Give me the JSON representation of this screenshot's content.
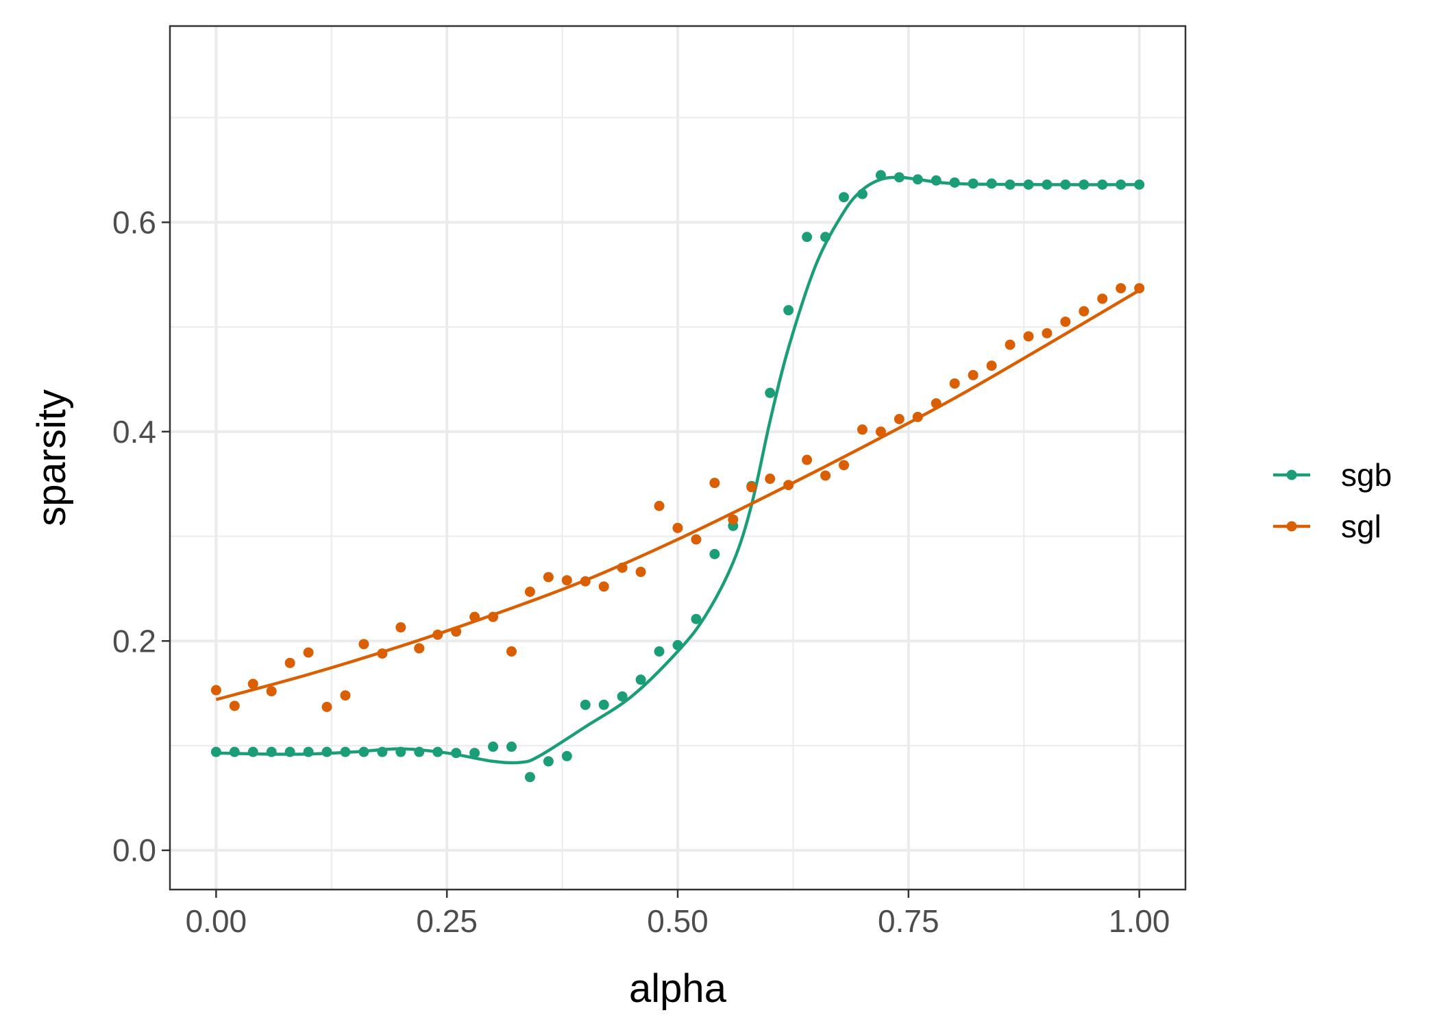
{
  "chart_data": {
    "type": "line",
    "title": "",
    "xlabel": "alpha",
    "ylabel": "sparsity",
    "xlim": [
      -0.0625,
      2.0
    ],
    "ylim": [
      -0.0375,
      0.7875
    ],
    "x_ticks": [
      0.0,
      0.25,
      0.5,
      0.75,
      1.0
    ],
    "x_tick_labels": [
      "0.00",
      "0.25",
      "0.50",
      "0.75",
      "1.00"
    ],
    "y_ticks": [
      0.0,
      0.2,
      0.4,
      0.6
    ],
    "y_tick_labels": [
      "0.0",
      "0.2",
      "0.4",
      "0.6"
    ],
    "grid": true,
    "legend_position": "right",
    "series": [
      {
        "name": "sgb",
        "color": "#1b9e77",
        "x": [
          0.0,
          0.02,
          0.04,
          0.06,
          0.08,
          0.1,
          0.12,
          0.14,
          0.16,
          0.18,
          0.2,
          0.22,
          0.24,
          0.26,
          0.28,
          0.3,
          0.32,
          0.34,
          0.36,
          0.38,
          0.4,
          0.42,
          0.44,
          0.46,
          0.48,
          0.5,
          0.52,
          0.54,
          0.56,
          0.58,
          0.6,
          0.62,
          0.64,
          0.66,
          0.68,
          0.7,
          0.72,
          0.74,
          0.76,
          0.78,
          0.8,
          0.82,
          0.84,
          0.86,
          0.88,
          0.9,
          0.92,
          0.94,
          0.96,
          0.98,
          1.0
        ],
        "y": [
          0.094,
          0.094,
          0.094,
          0.094,
          0.094,
          0.094,
          0.094,
          0.094,
          0.094,
          0.094,
          0.094,
          0.094,
          0.094,
          0.093,
          0.093,
          0.099,
          0.099,
          0.07,
          0.085,
          0.09,
          0.139,
          0.139,
          0.147,
          0.163,
          0.19,
          0.196,
          0.221,
          0.283,
          0.31,
          0.348,
          0.437,
          0.516,
          0.586,
          0.586,
          0.624,
          0.627,
          0.645,
          0.643,
          0.641,
          0.64,
          0.638,
          0.637,
          0.637,
          0.636,
          0.636,
          0.636,
          0.636,
          0.636,
          0.636,
          0.636,
          0.636
        ],
        "fit_x": [
          0.0,
          0.05,
          0.1,
          0.15,
          0.2,
          0.25,
          0.3,
          0.33,
          0.35,
          0.4,
          0.45,
          0.5,
          0.53,
          0.56,
          0.58,
          0.6,
          0.62,
          0.65,
          0.68,
          0.7,
          0.72,
          0.74,
          0.76,
          0.8,
          0.9,
          1.0
        ],
        "fit_y": [
          0.093,
          0.092,
          0.092,
          0.094,
          0.097,
          0.093,
          0.085,
          0.084,
          0.09,
          0.118,
          0.147,
          0.19,
          0.224,
          0.275,
          0.33,
          0.41,
          0.48,
          0.56,
          0.61,
          0.631,
          0.641,
          0.643,
          0.641,
          0.637,
          0.636,
          0.636
        ]
      },
      {
        "name": "sgl",
        "color": "#d95f02",
        "x": [
          0.0,
          0.02,
          0.04,
          0.06,
          0.08,
          0.1,
          0.12,
          0.14,
          0.16,
          0.18,
          0.2,
          0.22,
          0.24,
          0.26,
          0.28,
          0.3,
          0.32,
          0.34,
          0.36,
          0.38,
          0.4,
          0.42,
          0.44,
          0.46,
          0.48,
          0.5,
          0.52,
          0.54,
          0.56,
          0.58,
          0.6,
          0.62,
          0.64,
          0.66,
          0.68,
          0.7,
          0.72,
          0.74,
          0.76,
          0.78,
          0.8,
          0.82,
          0.84,
          0.86,
          0.88,
          0.9,
          0.92,
          0.94,
          0.96,
          0.98,
          1.0
        ],
        "y": [
          0.153,
          0.138,
          0.159,
          0.152,
          0.179,
          0.189,
          0.137,
          0.148,
          0.197,
          0.188,
          0.213,
          0.193,
          0.206,
          0.209,
          0.223,
          0.223,
          0.19,
          0.247,
          0.261,
          0.258,
          0.257,
          0.252,
          0.27,
          0.266,
          0.329,
          0.308,
          0.297,
          0.351,
          0.316,
          0.347,
          0.355,
          0.349,
          0.373,
          0.358,
          0.368,
          0.402,
          0.4,
          0.412,
          0.414,
          0.427,
          0.446,
          0.454,
          0.463,
          0.483,
          0.491,
          0.494,
          0.505,
          0.515,
          0.527,
          0.537,
          0.537
        ],
        "fit_x": [
          0.0,
          0.1,
          0.2,
          0.3,
          0.4,
          0.5,
          0.6,
          0.7,
          0.8,
          0.9,
          1.0
        ],
        "fit_y": [
          0.144,
          0.168,
          0.195,
          0.225,
          0.258,
          0.297,
          0.34,
          0.385,
          0.432,
          0.483,
          0.535
        ]
      }
    ]
  }
}
